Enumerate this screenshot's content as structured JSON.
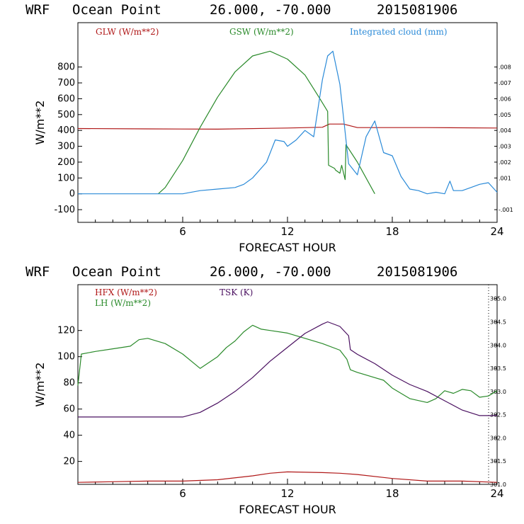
{
  "chart_data": [
    {
      "type": "line",
      "header": {
        "model": "WRF",
        "location": "Ocean Point",
        "coords": "26.000, -70.000",
        "date": "2015081906"
      },
      "xlabel": "FORECAST HOUR",
      "ylabel": "W/m**2",
      "xlim": [
        0,
        24
      ],
      "ylim": [
        -180,
        1080
      ],
      "x_ticks": [
        6,
        12,
        18,
        24
      ],
      "y_ticks": [
        -100,
        0,
        100,
        200,
        300,
        400,
        500,
        600,
        700,
        800
      ],
      "y2_ticks": [
        "-.001",
        ".001",
        ".002",
        ".003",
        ".004",
        ".005",
        ".006",
        ".007",
        ".008"
      ],
      "y2_tick_values": [
        -0.001,
        0.001,
        0.002,
        0.003,
        0.004,
        0.005,
        0.006,
        0.007,
        0.008
      ],
      "y2lim": [
        -0.0018,
        0.0108
      ],
      "legend": [
        "GLW (W/m**2)",
        "GSW (W/m**2)",
        "Integrated cloud (mm)"
      ],
      "colors": {
        "glw": "#b01818",
        "gsw": "#2a8a2a",
        "cloud": "#2a8ad8"
      },
      "series": [
        {
          "name": "GLW",
          "color": "#b01818",
          "x": [
            0,
            4,
            8,
            12,
            14,
            14.4,
            15.2,
            16,
            20,
            24
          ],
          "y": [
            412,
            410,
            408,
            415,
            420,
            440,
            440,
            418,
            418,
            415
          ]
        },
        {
          "name": "GSW",
          "color": "#2a8a2a",
          "x": [
            4.6,
            5,
            6,
            7,
            8,
            9,
            10,
            11,
            12,
            13,
            13.8,
            14.3,
            14.35,
            14.7,
            14.75,
            15.0,
            15.1,
            15.3,
            15.35,
            16,
            17
          ],
          "y": [
            0,
            40,
            210,
            420,
            610,
            770,
            870,
            900,
            850,
            750,
            610,
            520,
            180,
            160,
            150,
            130,
            180,
            90,
            310,
            200,
            0
          ]
        },
        {
          "name": "Integrated cloud",
          "color": "#2a8ad8",
          "x": [
            0,
            4,
            6,
            7,
            8,
            9,
            9.5,
            10,
            10.8,
            11.3,
            11.8,
            12,
            12.5,
            13,
            13.5,
            14,
            14.3,
            14.6,
            15,
            15.5,
            16,
            16.5,
            17,
            17.5,
            18,
            18.5,
            19,
            19.5,
            20,
            20.5,
            21,
            21.3,
            21.5,
            22,
            22.5,
            23,
            23.5,
            24
          ],
          "y": [
            0,
            0,
            0,
            20,
            30,
            40,
            60,
            100,
            200,
            340,
            330,
            300,
            340,
            400,
            360,
            720,
            870,
            900,
            690,
            190,
            120,
            360,
            460,
            260,
            240,
            110,
            30,
            20,
            0,
            10,
            0,
            80,
            20,
            20,
            40,
            60,
            70,
            10
          ]
        }
      ]
    },
    {
      "type": "line",
      "header": {
        "model": "WRF",
        "location": "Ocean Point",
        "coords": "26.000, -70.000",
        "date": "2015081906"
      },
      "xlabel": "FORECAST HOUR",
      "ylabel": "W/m**2",
      "xlim": [
        0,
        24
      ],
      "ylim": [
        2.5,
        155
      ],
      "x_ticks": [
        6,
        12,
        18,
        24
      ],
      "y_ticks": [
        20,
        40,
        60,
        80,
        100,
        120
      ],
      "y2_ticks": [
        "301.0",
        "301.5",
        "302.0",
        "302.5",
        "303.0",
        "303.5",
        "304.0",
        "304.5",
        "305.0"
      ],
      "y2_tick_values": [
        301.0,
        301.5,
        302.0,
        302.5,
        303.0,
        303.5,
        304.0,
        304.5,
        305.0
      ],
      "y2lim": [
        301.0,
        305.3
      ],
      "legend": [
        "HFX (W/m**2)",
        "LH  (W/m**2)",
        "TSK (K)"
      ],
      "colors": {
        "hfx": "#b01818",
        "lh": "#2a8a2a",
        "tsk": "#4a1060"
      },
      "series": [
        {
          "name": "HFX",
          "color": "#b01818",
          "x": [
            0,
            2,
            4,
            6,
            8,
            10,
            11,
            12,
            14,
            15,
            16,
            18,
            20,
            22,
            24
          ],
          "y": [
            4,
            4.5,
            5,
            5,
            6,
            9,
            11,
            12,
            11.5,
            11,
            10,
            7,
            5,
            5,
            4
          ]
        },
        {
          "name": "LH",
          "color": "#2a8a2a",
          "x": [
            0,
            0.2,
            1,
            2,
            3,
            3.5,
            4,
            5,
            6,
            7,
            8,
            8.5,
            9,
            9.5,
            10,
            10.5,
            11,
            12,
            13,
            14,
            15,
            15.4,
            15.6,
            16,
            17,
            17.5,
            18,
            19,
            20,
            20.5,
            21,
            21.5,
            22,
            22.5,
            23,
            23.5,
            24
          ],
          "y": [
            78,
            102,
            104,
            106,
            108,
            113,
            114,
            110,
            102,
            91,
            100,
            107,
            112,
            119,
            124,
            121,
            120,
            118,
            114,
            110,
            105,
            98,
            90,
            88,
            84,
            82,
            76,
            68,
            65,
            68,
            74,
            72,
            75,
            74,
            69,
            70,
            74
          ]
        },
        {
          "name": "TSK",
          "color": "#4a1060",
          "x": [
            0,
            2,
            4,
            6,
            7,
            8,
            9,
            10,
            11,
            12,
            13,
            14,
            14.3,
            15,
            15.5,
            15.6,
            16,
            17,
            18,
            19,
            20,
            21,
            22,
            23,
            24
          ],
          "y": [
            302.45,
            302.45,
            302.45,
            302.45,
            302.55,
            302.75,
            303.0,
            303.3,
            303.65,
            303.95,
            304.25,
            304.45,
            304.5,
            304.4,
            304.2,
            303.9,
            303.8,
            303.6,
            303.35,
            303.15,
            303.0,
            302.8,
            302.6,
            302.48,
            302.48
          ]
        }
      ]
    }
  ]
}
